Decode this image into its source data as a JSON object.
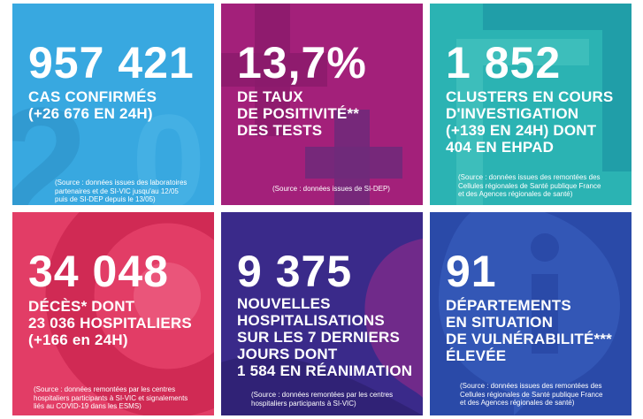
{
  "tiles": [
    {
      "value": "957 421",
      "lines": [
        "CAS CONFIRMÉS",
        "(+26 676 EN 24H)"
      ],
      "source": [
        "(Source : données issues des laboratoires",
        "partenaires et de SI-VIC jusqu'au 12/05",
        "puis de SI-DEP depuis le 13/05)"
      ],
      "color": "#38a8e0"
    },
    {
      "value": "13,7%",
      "lines": [
        "DE TAUX",
        "DE POSITIVITÉ**",
        "DES TESTS"
      ],
      "source": [
        "(Source : données issues de SI-DEP)"
      ],
      "color": "#a3207a"
    },
    {
      "value": "1 852",
      "lines": [
        "CLUSTERS EN COURS",
        "D'INVESTIGATION",
        "(+139 EN 24H) DONT",
        "404 EN EHPAD"
      ],
      "source": [
        "(Source : données issues des remontées des",
        "Cellules régionales de Santé publique France",
        "et des Agences régionales de santé)"
      ],
      "color": "#2bb3b3"
    },
    {
      "value": "34 048",
      "lines": [
        "DÉCÈS* DONT",
        "23 036 HOSPITALIERS",
        "(+166 en 24H)"
      ],
      "source": [
        "(Source : données remontées par les centres",
        "hospitaliers participants à SI-VIC et signalements",
        "liés au COVID-19 dans les ESMS)"
      ],
      "color": "#e23d66"
    },
    {
      "value": "9 375",
      "lines": [
        "NOUVELLES",
        "HOSPITALISATIONS",
        "SUR LES 7 DERNIERS",
        "JOURS DONT",
        "1 584 EN RÉANIMATION"
      ],
      "source": [
        "(Source : données remontées par les centres",
        "hospitaliers participants à SI-VIC)"
      ],
      "color": "#3a2a8a"
    },
    {
      "value": "91",
      "lines": [
        "DÉPARTEMENTS",
        "EN SITUATION",
        "DE VULNÉRABILITÉ***",
        "ÉLEVÉE"
      ],
      "source": [
        "(Source : données issues des remontées des",
        "Cellules régionales de Santé publique France",
        "et des Agences régionales de santé)"
      ],
      "color": "#2a4aa8"
    }
  ]
}
